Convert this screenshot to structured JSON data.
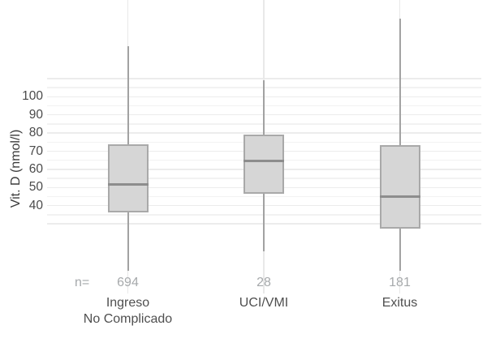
{
  "chart_data": {
    "type": "boxplot",
    "title": "",
    "xlabel": "",
    "ylabel": "Vit. D (nmol/l)",
    "yticks": [
      40,
      50,
      60,
      70,
      80,
      90,
      100
    ],
    "grid": {
      "on": true,
      "minor_step": 5,
      "gridline_value_range": [
        30,
        110
      ]
    },
    "legend": "none",
    "n_prefix": "n=",
    "groups": [
      {
        "label_lines": [
          "Ingreso",
          "No Complicado"
        ],
        "n": "694",
        "whisker_low": 4,
        "q1": 36.5,
        "median": 51.5,
        "q3": 74,
        "whisker_high": 128
      },
      {
        "label_lines": [
          "UCI/VMI"
        ],
        "n": "28",
        "whisker_low": 15,
        "q1": 46.5,
        "median": 64.5,
        "q3": 79,
        "whisker_high": 109
      },
      {
        "label_lines": [
          "Exitus"
        ],
        "n": "181",
        "whisker_low": 4,
        "q1": 27.5,
        "median": 45,
        "q3": 73.5,
        "whisker_high": 143
      }
    ],
    "colors": {
      "box_fill": "#d6d6d6",
      "box_border": "#a9a9a9",
      "median_line": "#8d8d8d",
      "whisker": "#a2a2a2",
      "grid_major": "#ececec",
      "grid_minor": "#f2f2f2",
      "grid_vertical": "#e9e9e9",
      "tick_label": "#4a4a4a",
      "axis_title": "#3b3b3b",
      "n_label": "#a6a9ab",
      "category_label": "#4f4f4f"
    }
  }
}
